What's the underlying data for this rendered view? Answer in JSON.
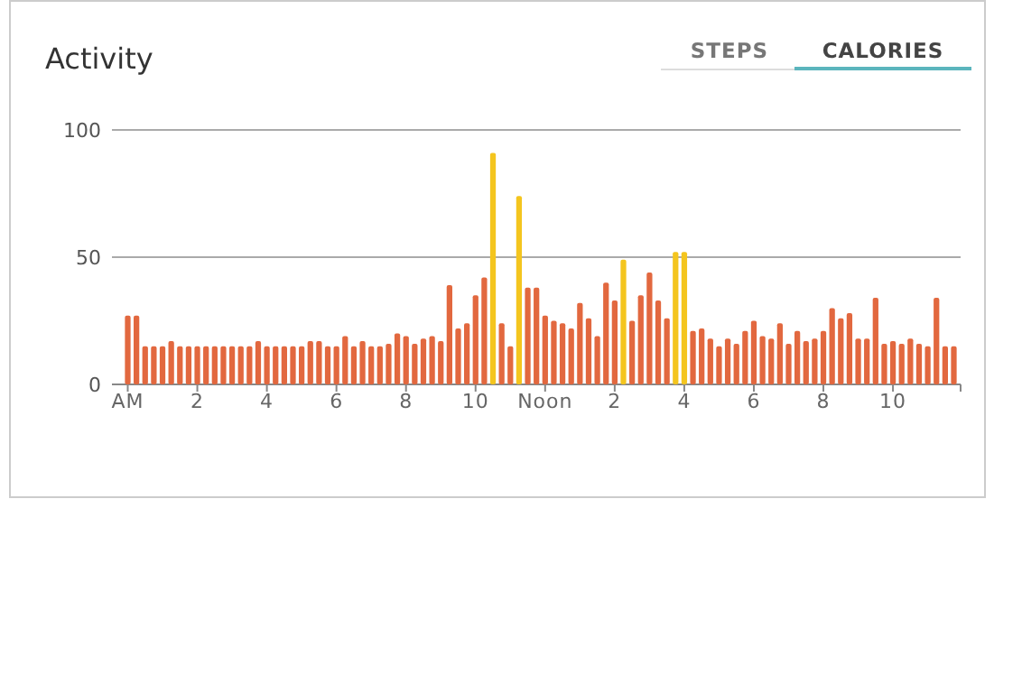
{
  "chart_data": {
    "type": "bar",
    "title": "Activity",
    "annotations": [
      "STEPS",
      "CALORIES"
    ],
    "categories": [
      "AM",
      null,
      null,
      null,
      null,
      null,
      null,
      null,
      "2",
      null,
      null,
      null,
      null,
      null,
      null,
      null,
      "4",
      null,
      null,
      null,
      null,
      null,
      null,
      null,
      "6",
      null,
      null,
      null,
      null,
      null,
      null,
      null,
      "8",
      null,
      null,
      null,
      null,
      null,
      null,
      null,
      "10",
      null,
      null,
      null,
      null,
      null,
      null,
      null,
      "Noon",
      null,
      null,
      null,
      null,
      null,
      null,
      null,
      "2",
      null,
      null,
      null,
      null,
      null,
      null,
      null,
      "4",
      null,
      null,
      null,
      null,
      null,
      null,
      null,
      "6",
      null,
      null,
      null,
      null,
      null,
      null,
      null,
      "8",
      null,
      null,
      null,
      null,
      null,
      null,
      null,
      "10",
      null,
      null,
      null,
      null,
      null,
      null,
      null
    ],
    "values": [
      27,
      27,
      15,
      15,
      15,
      17,
      15,
      15,
      15,
      15,
      15,
      15,
      15,
      15,
      15,
      17,
      15,
      15,
      15,
      15,
      15,
      17,
      17,
      15,
      15,
      19,
      15,
      17,
      15,
      15,
      16,
      20,
      19,
      16,
      18,
      19,
      17,
      39,
      22,
      24,
      35,
      42,
      91,
      24,
      15,
      74,
      38,
      38,
      27,
      25,
      24,
      22,
      32,
      26,
      19,
      40,
      33,
      49,
      25,
      35,
      44,
      33,
      26,
      52,
      52,
      21,
      22,
      18,
      15,
      18,
      16,
      21,
      25,
      19,
      18,
      24,
      16,
      21,
      17,
      18,
      21,
      30,
      26,
      28,
      18,
      18,
      34,
      16,
      17,
      16,
      18,
      16,
      15,
      34,
      15,
      15
    ],
    "colors": [
      "#e2683f",
      "#e2683f",
      "#e2683f",
      "#e2683f",
      "#e2683f",
      "#e2683f",
      "#e2683f",
      "#e2683f",
      "#e2683f",
      "#e2683f",
      "#e2683f",
      "#e2683f",
      "#e2683f",
      "#e2683f",
      "#e2683f",
      "#e2683f",
      "#e2683f",
      "#e2683f",
      "#e2683f",
      "#e2683f",
      "#e2683f",
      "#e2683f",
      "#e2683f",
      "#e2683f",
      "#e2683f",
      "#e2683f",
      "#e2683f",
      "#e2683f",
      "#e2683f",
      "#e2683f",
      "#e2683f",
      "#e2683f",
      "#e2683f",
      "#e2683f",
      "#e2683f",
      "#e2683f",
      "#e2683f",
      "#e2683f",
      "#e2683f",
      "#e2683f",
      "#e2683f",
      "#e2683f",
      "#f4c51e",
      "#e2683f",
      "#e2683f",
      "#f4c51e",
      "#e2683f",
      "#e2683f",
      "#e2683f",
      "#e2683f",
      "#e2683f",
      "#e2683f",
      "#e2683f",
      "#e2683f",
      "#e2683f",
      "#e2683f",
      "#e2683f",
      "#f4c51e",
      "#e2683f",
      "#e2683f",
      "#e2683f",
      "#e2683f",
      "#e2683f",
      "#f4c51e",
      "#f4c51e",
      "#e2683f",
      "#e2683f",
      "#e2683f",
      "#e2683f",
      "#e2683f",
      "#e2683f",
      "#e2683f",
      "#e2683f",
      "#e2683f",
      "#e2683f",
      "#e2683f",
      "#e2683f",
      "#e2683f",
      "#e2683f",
      "#e2683f",
      "#e2683f",
      "#e2683f",
      "#e2683f",
      "#e2683f",
      "#e2683f",
      "#e2683f",
      "#e2683f",
      "#e2683f",
      "#e2683f",
      "#e2683f",
      "#e2683f",
      "#e2683f",
      "#e2683f",
      "#e2683f",
      "#e2683f",
      "#e2683f"
    ],
    "ylim": [
      0,
      100
    ],
    "yticks": [
      0,
      50,
      100
    ],
    "grid": "y"
  }
}
